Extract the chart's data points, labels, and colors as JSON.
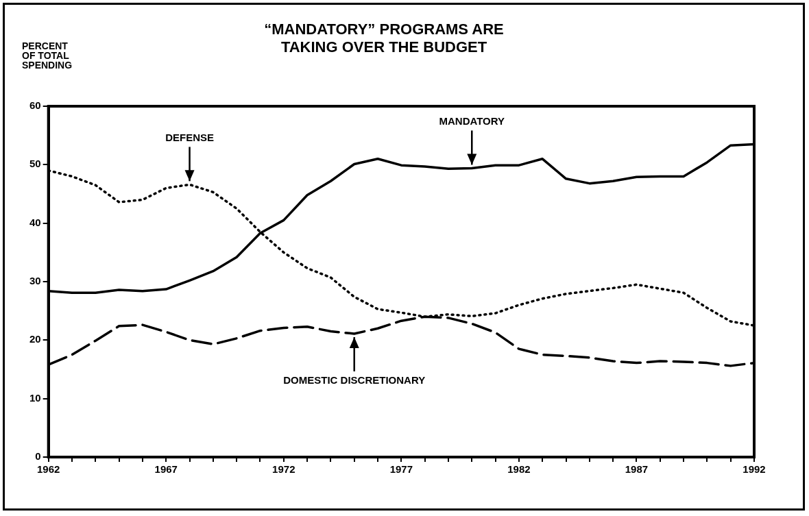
{
  "chart_data": {
    "type": "line",
    "title": "“MANDATORY” PROGRAMS ARE TAKING OVER THE BUDGET",
    "ylabel": "PERCENT OF TOTAL SPENDING",
    "x": [
      1962,
      1963,
      1964,
      1965,
      1966,
      1967,
      1968,
      1969,
      1970,
      1971,
      1972,
      1973,
      1974,
      1975,
      1976,
      1977,
      1978,
      1979,
      1980,
      1981,
      1982,
      1983,
      1984,
      1985,
      1986,
      1987,
      1988,
      1989,
      1990,
      1991,
      1992
    ],
    "series": [
      {
        "color": "#000000",
        "line_style": "solid",
        "values": [
          28.4,
          28.1,
          28.1,
          28.6,
          28.4,
          28.7,
          30.2,
          31.8,
          34.2,
          38.3,
          40.5,
          44.8,
          47.2,
          50.1,
          51,
          49.9,
          49.7,
          49.3,
          49.4,
          49.9,
          49.9,
          51,
          47.6,
          46.8,
          47.2,
          47.9,
          48,
          48,
          50.4,
          53.3,
          53.5
        ]
      },
      {
        "color": "#000000",
        "line_style": "dotted",
        "values": [
          49,
          48,
          46.5,
          43.6,
          44,
          46,
          46.6,
          45.3,
          42.5,
          38.5,
          35,
          32.3,
          30.7,
          27.4,
          25.3,
          24.7,
          24,
          24.4,
          24.1,
          24.6,
          26,
          27.1,
          27.9,
          28.4,
          28.9,
          29.5,
          28.8,
          28.1,
          25.5,
          23.2,
          22.5
        ]
      },
      {
        "color": "#000000",
        "line_style": "dashed",
        "values": [
          15.8,
          17.5,
          19.9,
          22.4,
          22.6,
          21.4,
          20,
          19.3,
          20.3,
          21.6,
          22.1,
          22.3,
          21.5,
          21.1,
          22,
          23.3,
          24,
          23.8,
          22.8,
          21.3,
          18.5,
          17.5,
          17.3,
          17,
          16.4,
          16.1,
          16.4,
          16.3,
          16.1,
          15.6,
          16.1
        ]
      }
    ],
    "annotations": [
      {
        "text": "MANDATORY",
        "x": 1980,
        "y": 49.4
      },
      {
        "text": "DEFENSE",
        "x": 1968,
        "y": 46.6
      },
      {
        "text": "DOMESTIC DISCRETIONARY",
        "x": 1975,
        "y": 21.1
      }
    ],
    "xlim": [
      1962,
      1992
    ],
    "xticks": [
      1962,
      {
        "value": 1963,
        "label": null
      },
      {
        "value": 1964,
        "label": null
      },
      {
        "value": 1965,
        "label": null
      },
      {
        "value": 1966,
        "label": null
      },
      1967,
      {
        "value": 1968,
        "label": null
      },
      {
        "value": 1969,
        "label": null
      },
      {
        "value": 1970,
        "label": null
      },
      {
        "value": 1971,
        "label": null
      },
      1972,
      {
        "value": 1973,
        "label": null
      },
      {
        "value": 1974,
        "label": null
      },
      {
        "value": 1975,
        "label": null
      },
      {
        "value": 1976,
        "label": null
      },
      1977,
      {
        "value": 1978,
        "label": null
      },
      {
        "value": 1979,
        "label": null
      },
      {
        "value": 1980,
        "label": null
      },
      {
        "value": 1981,
        "label": null
      },
      1982,
      {
        "value": 1983,
        "label": null
      },
      {
        "value": 1984,
        "label": null
      },
      {
        "value": 1985,
        "label": null
      },
      {
        "value": 1986,
        "label": null
      },
      1987,
      {
        "value": 1988,
        "label": null
      },
      {
        "value": 1989,
        "label": null
      },
      {
        "value": 1990,
        "label": null
      },
      {
        "value": 1991,
        "label": null
      },
      1992
    ],
    "ylim": [
      0,
      60
    ],
    "yticks": [
      0,
      10,
      20,
      30,
      40,
      50,
      60
    ],
    "grid": false,
    "legend": false,
    "marker": "none"
  }
}
